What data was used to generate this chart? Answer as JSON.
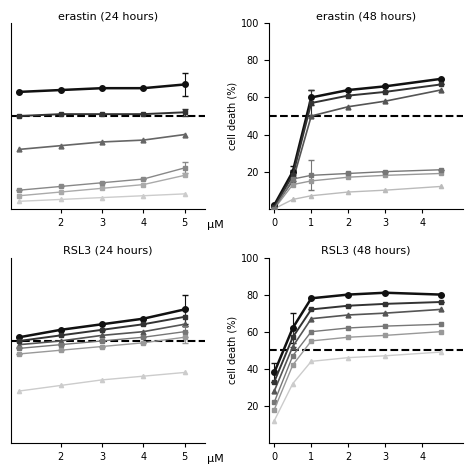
{
  "erastin_24h": {
    "title": "erastin (24 hours)",
    "x": [
      1,
      2,
      3,
      4,
      5
    ],
    "xlim": [
      0.8,
      5.5
    ],
    "xticks": [
      2,
      3,
      4,
      5
    ],
    "xlabel": "μM",
    "ylim": [
      0,
      100
    ],
    "yticks": [
      20,
      40,
      60,
      80,
      100
    ],
    "dashed_y": 50,
    "show_yticks": false,
    "series": [
      {
        "y": [
          63,
          64,
          65,
          65,
          67
        ],
        "color": "#111111",
        "lw": 1.8,
        "marker": "o",
        "ms": 4,
        "yerr": [
          0,
          0,
          0,
          0,
          6
        ]
      },
      {
        "y": [
          50,
          51,
          51,
          51,
          52
        ],
        "color": "#333333",
        "lw": 1.4,
        "marker": "s",
        "ms": 3.5,
        "yerr": [
          0,
          0,
          0,
          0,
          2
        ]
      },
      {
        "y": [
          32,
          34,
          36,
          37,
          40
        ],
        "color": "#666666",
        "lw": 1.2,
        "marker": "^",
        "ms": 3.5,
        "yerr": [
          0,
          0,
          0,
          0,
          0
        ]
      },
      {
        "y": [
          10,
          12,
          14,
          16,
          22
        ],
        "color": "#888888",
        "lw": 1.0,
        "marker": "s",
        "ms": 3.5,
        "yerr": [
          0,
          0,
          0,
          0,
          3
        ]
      },
      {
        "y": [
          7,
          9,
          11,
          13,
          18
        ],
        "color": "#aaaaaa",
        "lw": 1.0,
        "marker": "s",
        "ms": 3,
        "yerr": [
          0,
          0,
          0,
          0,
          0
        ]
      },
      {
        "y": [
          4,
          5,
          6,
          7,
          8
        ],
        "color": "#cccccc",
        "lw": 1.0,
        "marker": "^",
        "ms": 3,
        "yerr": [
          0,
          0,
          0,
          0,
          0
        ]
      }
    ]
  },
  "erastin_48h": {
    "title": "erastin (48 hours)",
    "x": [
      0,
      0.5,
      1,
      2,
      3,
      4.5
    ],
    "xlim": [
      -0.15,
      5.1
    ],
    "xticks": [
      0,
      1,
      2,
      3,
      4
    ],
    "xlabel": "",
    "ylim": [
      0,
      100
    ],
    "yticks": [
      20,
      40,
      60,
      80,
      100
    ],
    "dashed_y": 50,
    "show_yticks": true,
    "series": [
      {
        "y": [
          2,
          20,
          60,
          64,
          66,
          70
        ],
        "color": "#111111",
        "lw": 1.8,
        "marker": "o",
        "ms": 4,
        "yerr": [
          0,
          3,
          4,
          0,
          0,
          0
        ]
      },
      {
        "y": [
          1,
          18,
          57,
          61,
          63,
          67
        ],
        "color": "#333333",
        "lw": 1.4,
        "marker": "s",
        "ms": 3.5,
        "yerr": [
          0,
          3,
          7,
          0,
          0,
          0
        ]
      },
      {
        "y": [
          1,
          15,
          50,
          55,
          58,
          64
        ],
        "color": "#555555",
        "lw": 1.2,
        "marker": "^",
        "ms": 3.5,
        "yerr": [
          0,
          0,
          0,
          0,
          0,
          0
        ]
      },
      {
        "y": [
          0,
          16,
          18,
          19,
          20,
          21
        ],
        "color": "#777777",
        "lw": 1.0,
        "marker": "s",
        "ms": 3.5,
        "yerr": [
          0,
          2,
          8,
          0,
          0,
          0
        ]
      },
      {
        "y": [
          0,
          13,
          15,
          17,
          18,
          19
        ],
        "color": "#999999",
        "lw": 1.0,
        "marker": "s",
        "ms": 3,
        "yerr": [
          0,
          0,
          0,
          0,
          0,
          0
        ]
      },
      {
        "y": [
          0,
          5,
          7,
          9,
          10,
          12
        ],
        "color": "#bbbbbb",
        "lw": 1.0,
        "marker": "^",
        "ms": 3,
        "yerr": [
          0,
          0,
          0,
          0,
          0,
          0
        ]
      }
    ]
  },
  "rsl3_24h": {
    "title": "RSL3 (24 hours)",
    "x": [
      1,
      2,
      3,
      4,
      5
    ],
    "xlim": [
      0.8,
      5.5
    ],
    "xticks": [
      2,
      3,
      4,
      5
    ],
    "xlabel": "μM",
    "ylim": [
      0,
      100
    ],
    "yticks": [
      20,
      40,
      60,
      80,
      100
    ],
    "dashed_y": 55,
    "show_yticks": false,
    "series": [
      {
        "y": [
          57,
          61,
          64,
          67,
          72
        ],
        "color": "#111111",
        "lw": 1.8,
        "marker": "o",
        "ms": 4,
        "yerr": [
          0,
          0,
          0,
          0,
          8
        ]
      },
      {
        "y": [
          55,
          58,
          61,
          64,
          68
        ],
        "color": "#333333",
        "lw": 1.4,
        "marker": "s",
        "ms": 3.5,
        "yerr": [
          0,
          0,
          0,
          0,
          5
        ]
      },
      {
        "y": [
          53,
          55,
          58,
          60,
          64
        ],
        "color": "#555555",
        "lw": 1.2,
        "marker": "^",
        "ms": 3.5,
        "yerr": [
          0,
          0,
          0,
          0,
          0
        ]
      },
      {
        "y": [
          51,
          53,
          55,
          57,
          60
        ],
        "color": "#777777",
        "lw": 1.0,
        "marker": "s",
        "ms": 3.5,
        "yerr": [
          0,
          0,
          0,
          0,
          3
        ]
      },
      {
        "y": [
          48,
          50,
          52,
          54,
          57
        ],
        "color": "#999999",
        "lw": 1.0,
        "marker": "s",
        "ms": 3,
        "yerr": [
          0,
          0,
          0,
          0,
          3
        ]
      },
      {
        "y": [
          28,
          31,
          34,
          36,
          38
        ],
        "color": "#cccccc",
        "lw": 1.0,
        "marker": "^",
        "ms": 3,
        "yerr": [
          0,
          0,
          0,
          0,
          0
        ]
      }
    ]
  },
  "rsl3_48h": {
    "title": "RSL3 (48 hours)",
    "x": [
      0,
      0.5,
      1,
      2,
      3,
      4.5
    ],
    "xlim": [
      -0.15,
      5.1
    ],
    "xticks": [
      0,
      1,
      2,
      3,
      4
    ],
    "xlabel": "",
    "ylim": [
      0,
      100
    ],
    "yticks": [
      20,
      40,
      60,
      80,
      100
    ],
    "dashed_y": 50,
    "show_yticks": true,
    "series": [
      {
        "y": [
          38,
          62,
          78,
          80,
          81,
          80
        ],
        "color": "#111111",
        "lw": 1.8,
        "marker": "o",
        "ms": 4,
        "yerr": [
          5,
          8,
          0,
          0,
          0,
          0
        ]
      },
      {
        "y": [
          33,
          57,
          72,
          74,
          75,
          76
        ],
        "color": "#333333",
        "lw": 1.4,
        "marker": "s",
        "ms": 3.5,
        "yerr": [
          0,
          5,
          0,
          0,
          0,
          0
        ]
      },
      {
        "y": [
          28,
          52,
          67,
          69,
          70,
          72
        ],
        "color": "#555555",
        "lw": 1.2,
        "marker": "^",
        "ms": 3.5,
        "yerr": [
          0,
          0,
          0,
          0,
          0,
          0
        ]
      },
      {
        "y": [
          22,
          47,
          60,
          62,
          63,
          64
        ],
        "color": "#777777",
        "lw": 1.0,
        "marker": "s",
        "ms": 3.5,
        "yerr": [
          0,
          0,
          0,
          0,
          0,
          0
        ]
      },
      {
        "y": [
          18,
          42,
          55,
          57,
          58,
          60
        ],
        "color": "#999999",
        "lw": 1.0,
        "marker": "s",
        "ms": 3,
        "yerr": [
          0,
          0,
          0,
          0,
          0,
          0
        ]
      },
      {
        "y": [
          12,
          32,
          44,
          46,
          47,
          49
        ],
        "color": "#cccccc",
        "lw": 1.0,
        "marker": "^",
        "ms": 3,
        "yerr": [
          0,
          0,
          0,
          0,
          0,
          0
        ]
      }
    ]
  },
  "ylabel": "cell death (%)"
}
